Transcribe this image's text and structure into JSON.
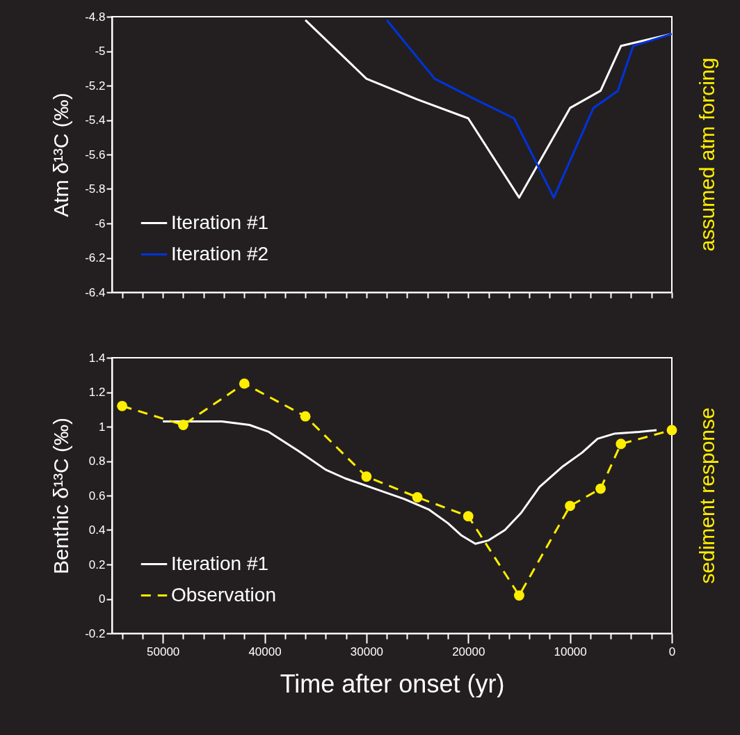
{
  "chart_data": [
    {
      "type": "line",
      "ylabel": "Atm δ¹³C (‰)",
      "annotations": [
        "assumed atm forcing"
      ],
      "xlim": [
        55000,
        0
      ],
      "ylim": [
        -6.4,
        -4.8
      ],
      "yticks": [
        -6.4,
        -6.2,
        -6,
        -5.8,
        -5.6,
        -5.4,
        -5.2,
        -5,
        -4.8
      ],
      "xticks": [
        {
          "value": 54000,
          "label": null
        },
        {
          "value": 52000,
          "label": null
        },
        {
          "value": 50000,
          "label": null
        },
        {
          "value": 48000,
          "label": null
        },
        {
          "value": 46000,
          "label": null
        },
        {
          "value": 44000,
          "label": null
        },
        {
          "value": 42000,
          "label": null
        },
        {
          "value": 40000,
          "label": null
        },
        {
          "value": 38000,
          "label": null
        },
        {
          "value": 36000,
          "label": null
        },
        {
          "value": 34000,
          "label": null
        },
        {
          "value": 32000,
          "label": null
        },
        {
          "value": 30000,
          "label": null
        },
        {
          "value": 28000,
          "label": null
        },
        {
          "value": 26000,
          "label": null
        },
        {
          "value": 24000,
          "label": null
        },
        {
          "value": 22000,
          "label": null
        },
        {
          "value": 20000,
          "label": null
        },
        {
          "value": 18000,
          "label": null
        },
        {
          "value": 16000,
          "label": null
        },
        {
          "value": 14000,
          "label": null
        },
        {
          "value": 12000,
          "label": null
        },
        {
          "value": 10000,
          "label": null
        },
        {
          "value": 8000,
          "label": null
        },
        {
          "value": 6000,
          "label": null
        },
        {
          "value": 4000,
          "label": null
        },
        {
          "value": 2000,
          "label": null
        },
        {
          "value": 0,
          "label": null
        }
      ],
      "tick_labels": "y",
      "legend": "bottom left",
      "series": [
        {
          "name": "Iteration #1",
          "color": "#ffffff",
          "line_style": "solid",
          "x": [
            36000,
            30000,
            25000,
            20000,
            15000,
            10000,
            7000,
            5000,
            0
          ],
          "values": [
            -4.82,
            -5.16,
            -5.28,
            -5.39,
            -5.85,
            -5.33,
            -5.23,
            -4.97,
            -4.9
          ]
        },
        {
          "name": "Iteration #2",
          "color": "#0033dd",
          "line_style": "solid",
          "x": [
            28000,
            23300,
            19300,
            15500,
            11600,
            7700,
            5300,
            3800,
            0
          ],
          "values": [
            -4.82,
            -5.16,
            -5.28,
            -5.39,
            -5.85,
            -5.33,
            -5.23,
            -4.97,
            -4.9
          ]
        }
      ]
    },
    {
      "type": "line",
      "ylabel": "Benthic δ¹³C (‰)",
      "xlabel": "Time after onset (yr)",
      "annotations": [
        "sediment response"
      ],
      "xlim": [
        55000,
        0
      ],
      "ylim": [
        -0.2,
        1.4
      ],
      "yticks": [
        -0.2,
        0,
        0.2,
        0.4,
        0.6,
        0.8,
        1,
        1.2,
        1.4
      ],
      "xticks": [
        {
          "value": 54000,
          "label": null
        },
        {
          "value": 52000,
          "label": null
        },
        50000,
        {
          "value": 48000,
          "label": null
        },
        {
          "value": 46000,
          "label": null
        },
        {
          "value": 44000,
          "label": null
        },
        {
          "value": 42000,
          "label": null
        },
        40000,
        {
          "value": 38000,
          "label": null
        },
        {
          "value": 36000,
          "label": null
        },
        {
          "value": 34000,
          "label": null
        },
        {
          "value": 32000,
          "label": null
        },
        30000,
        {
          "value": 28000,
          "label": null
        },
        {
          "value": 26000,
          "label": null
        },
        {
          "value": 24000,
          "label": null
        },
        {
          "value": 22000,
          "label": null
        },
        20000,
        {
          "value": 18000,
          "label": null
        },
        {
          "value": 16000,
          "label": null
        },
        {
          "value": 14000,
          "label": null
        },
        {
          "value": 12000,
          "label": null
        },
        10000,
        {
          "value": 8000,
          "label": null
        },
        {
          "value": 6000,
          "label": null
        },
        {
          "value": 4000,
          "label": null
        },
        {
          "value": 2000,
          "label": null
        },
        0
      ],
      "legend": "bottom left",
      "series": [
        {
          "name": "Iteration #1",
          "color": "#ffffff",
          "line_style": "solid",
          "x": [
            50000,
            44200,
            41500,
            39600,
            36700,
            34000,
            32100,
            28700,
            26300,
            23900,
            22000,
            20700,
            19300,
            18000,
            16400,
            14800,
            13000,
            10700,
            8800,
            7300,
            5600,
            3200,
            1500
          ],
          "values": [
            1.03,
            1.03,
            1.01,
            0.97,
            0.86,
            0.75,
            0.7,
            0.63,
            0.58,
            0.52,
            0.44,
            0.37,
            0.32,
            0.34,
            0.4,
            0.5,
            0.65,
            0.77,
            0.85,
            0.93,
            0.96,
            0.97,
            0.98
          ]
        },
        {
          "name": "Observation",
          "color": "#ffee00",
          "line_style": "dashed",
          "marker": "circle",
          "x": [
            54000,
            48000,
            42000,
            36000,
            30000,
            25000,
            20000,
            15000,
            10000,
            7000,
            5000,
            0
          ],
          "values": [
            1.12,
            1.01,
            1.25,
            1.06,
            0.71,
            0.59,
            0.48,
            0.02,
            0.54,
            0.64,
            0.9,
            0.98
          ]
        }
      ]
    }
  ]
}
